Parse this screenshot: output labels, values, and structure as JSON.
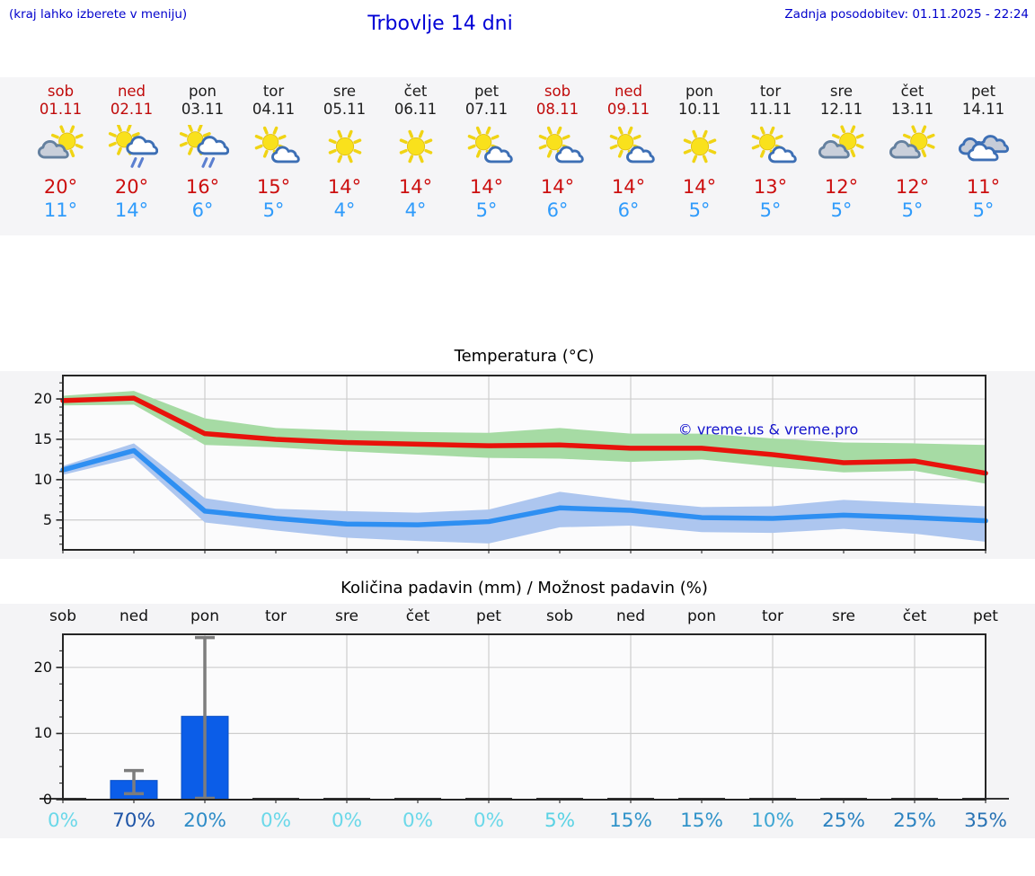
{
  "header": {
    "hint": "(kraj lahko izberete v meniju)",
    "title": "Trbovlje 14 dni",
    "updated": "Zadnja posodobitev: 01.11.2025 - 22:24"
  },
  "forecast": {
    "days": [
      {
        "name": "sob",
        "date": "01.11",
        "weekend": true,
        "icon": "sun-gray-cloud",
        "high": "20°",
        "low": "11°"
      },
      {
        "name": "ned",
        "date": "02.11",
        "weekend": true,
        "icon": "sun-rain",
        "high": "20°",
        "low": "14°"
      },
      {
        "name": "pon",
        "date": "03.11",
        "weekend": false,
        "icon": "sun-rain",
        "high": "16°",
        "low": "6°"
      },
      {
        "name": "tor",
        "date": "04.11",
        "weekend": false,
        "icon": "sun-small-cloud",
        "high": "15°",
        "low": "5°"
      },
      {
        "name": "sre",
        "date": "05.11",
        "weekend": false,
        "icon": "sun",
        "high": "14°",
        "low": "4°"
      },
      {
        "name": "čet",
        "date": "06.11",
        "weekend": false,
        "icon": "sun",
        "high": "14°",
        "low": "4°"
      },
      {
        "name": "pet",
        "date": "07.11",
        "weekend": false,
        "icon": "sun-small-cloud",
        "high": "14°",
        "low": "5°"
      },
      {
        "name": "sob",
        "date": "08.11",
        "weekend": true,
        "icon": "sun-small-cloud",
        "high": "14°",
        "low": "6°"
      },
      {
        "name": "ned",
        "date": "09.11",
        "weekend": true,
        "icon": "sun-small-cloud",
        "high": "14°",
        "low": "6°"
      },
      {
        "name": "pon",
        "date": "10.11",
        "weekend": false,
        "icon": "sun",
        "high": "14°",
        "low": "5°"
      },
      {
        "name": "tor",
        "date": "11.11",
        "weekend": false,
        "icon": "sun-small-cloud",
        "high": "13°",
        "low": "5°"
      },
      {
        "name": "sre",
        "date": "12.11",
        "weekend": false,
        "icon": "sun-gray-cloud",
        "high": "12°",
        "low": "5°"
      },
      {
        "name": "čet",
        "date": "13.11",
        "weekend": false,
        "icon": "sun-gray-cloud",
        "high": "12°",
        "low": "5°"
      },
      {
        "name": "pet",
        "date": "14.11",
        "weekend": false,
        "icon": "cloudy",
        "high": "11°",
        "low": "5°"
      }
    ]
  },
  "chart_data": [
    {
      "type": "line",
      "title": "Temperatura (°C)",
      "x_labels": [
        "sob",
        "ned",
        "pon",
        "tor",
        "sre",
        "čet",
        "pet",
        "sob",
        "ned",
        "pon",
        "tor",
        "sre",
        "čet",
        "pet"
      ],
      "ylim": [
        1.3,
        22.9
      ],
      "yticks": [
        5,
        10,
        15,
        20
      ],
      "grid": true,
      "watermark": "© vreme.us & vreme.pro",
      "series": [
        {
          "name": "max-temperature",
          "color": "#e8120b",
          "values": [
            19.8,
            20.1,
            15.7,
            15.0,
            14.6,
            14.4,
            14.2,
            14.3,
            13.9,
            13.9,
            13.1,
            12.1,
            12.3,
            10.8
          ]
        },
        {
          "name": "min-temperature",
          "color": "#2e8ff2",
          "values": [
            11.2,
            13.6,
            6.1,
            5.2,
            4.5,
            4.4,
            4.8,
            6.5,
            6.2,
            5.3,
            5.2,
            5.6,
            5.3,
            4.9
          ]
        }
      ],
      "bands": [
        {
          "name": "max-range",
          "color": "#a6dba4",
          "upper": [
            20.4,
            21.0,
            17.6,
            16.4,
            16.1,
            15.9,
            15.8,
            16.4,
            15.7,
            15.7,
            15.1,
            14.6,
            14.5,
            14.3
          ],
          "lower": [
            19.2,
            19.3,
            14.3,
            14.0,
            13.5,
            13.1,
            12.7,
            12.6,
            12.2,
            12.5,
            11.6,
            10.9,
            11.1,
            9.5
          ]
        },
        {
          "name": "min-range",
          "color": "#adc6ef",
          "upper": [
            11.7,
            14.5,
            7.7,
            6.4,
            6.1,
            5.9,
            6.3,
            8.5,
            7.4,
            6.6,
            6.7,
            7.5,
            7.1,
            6.7
          ],
          "lower": [
            10.6,
            12.7,
            4.7,
            3.7,
            2.8,
            2.4,
            2.1,
            4.1,
            4.3,
            3.5,
            3.4,
            3.9,
            3.3,
            2.3
          ]
        }
      ]
    },
    {
      "type": "bar",
      "title": "Količina padavin (mm) / Možnost padavin (%)",
      "x_labels": [
        "sob",
        "ned",
        "pon",
        "tor",
        "sre",
        "čet",
        "pet",
        "sob",
        "ned",
        "pon",
        "tor",
        "sre",
        "čet",
        "pet"
      ],
      "ylim": [
        0,
        25
      ],
      "yticks": [
        0,
        10,
        20
      ],
      "grid": true,
      "bar_color": "#0b5de8",
      "bar_edge_color": "#0a4fc4",
      "error_color": "#7d7d7d",
      "values": [
        0,
        2.9,
        12.6,
        0,
        0,
        0,
        0,
        0,
        0,
        0,
        0,
        0,
        0,
        0
      ],
      "error_low": [
        null,
        0.9,
        0.2,
        null,
        null,
        null,
        null,
        null,
        null,
        null,
        null,
        null,
        null,
        null
      ],
      "error_high": [
        null,
        4.4,
        24.5,
        null,
        null,
        null,
        null,
        null,
        null,
        null,
        null,
        null,
        null,
        null
      ],
      "probabilities": [
        "0%",
        "70%",
        "20%",
        "0%",
        "0%",
        "0%",
        "0%",
        "5%",
        "15%",
        "15%",
        "10%",
        "25%",
        "25%",
        "35%"
      ],
      "probability_colors": [
        "#6bd8e9",
        "#1e55a7",
        "#2e8cc7",
        "#6bd8e9",
        "#6bd8e9",
        "#6bd8e9",
        "#6bd8e9",
        "#59d2e4",
        "#3093c9",
        "#3093c9",
        "#3ea6d3",
        "#2b82c0",
        "#2b82c0",
        "#2973b4"
      ]
    }
  ]
}
